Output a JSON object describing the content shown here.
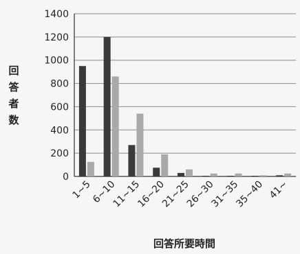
{
  "chart_data": {
    "type": "bar",
    "title": "",
    "xlabel": "回答所要時間",
    "ylabel": "回答者数",
    "categories": [
      "1~5",
      "6~10",
      "11~15",
      "16~20",
      "21~25",
      "26~30",
      "31~35",
      "35~40",
      "41~"
    ],
    "series": [
      {
        "values": [
          950,
          1200,
          270,
          75,
          30,
          5,
          5,
          5,
          10
        ],
        "color": "#3a3a3a"
      },
      {
        "values": [
          125,
          860,
          540,
          190,
          60,
          25,
          25,
          10,
          25
        ],
        "color": "#a9a9a9"
      }
    ],
    "ylim": [
      0,
      1400
    ],
    "yticks": [
      0,
      200,
      400,
      600,
      800,
      1000,
      1200,
      1400
    ],
    "grid": true,
    "legend": "none"
  }
}
